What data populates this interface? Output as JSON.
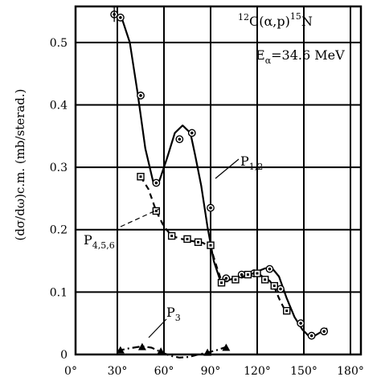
{
  "chart_data": {
    "type": "line",
    "ylabel": "(dσ/dω)c.m. (mb/sterad.)",
    "reaction": {
      "pre": "12",
      "main": "C(α,p)",
      "post": "15",
      "tail": "N"
    },
    "energy": {
      "main": "E",
      "sub": "α",
      "rest": "=34.6 MeV"
    },
    "xlim": [
      0,
      180
    ],
    "ylim": [
      0,
      0.56
    ],
    "x_ticks": [
      "0°",
      "30°",
      "60°",
      "90°",
      "120°",
      "150°",
      "180°"
    ],
    "x_tick_values": [
      0,
      30,
      60,
      90,
      120,
      150,
      180
    ],
    "y_ticks": [
      "0",
      "0.1",
      "0.2",
      "0.3",
      "0.4",
      "0.5"
    ],
    "y_tick_values": [
      0,
      0.1,
      0.2,
      0.3,
      0.4,
      0.5
    ],
    "grid": true,
    "series": [
      {
        "name": {
          "main": "P",
          "sub": "1,2"
        },
        "style": "solid",
        "marker": "circle",
        "x": [
          28,
          32,
          45,
          55,
          70,
          78,
          90,
          100,
          110,
          118,
          128,
          135,
          148,
          155,
          163
        ],
        "y": [
          0.545,
          0.54,
          0.415,
          0.275,
          0.345,
          0.355,
          0.235,
          0.122,
          0.128,
          0.13,
          0.137,
          0.105,
          0.05,
          0.03,
          0.037
        ],
        "curve_x": [
          28,
          33,
          38,
          43,
          48,
          53,
          57,
          62,
          67,
          72,
          77,
          80,
          84,
          88,
          92,
          96,
          100,
          105,
          110,
          115,
          120,
          125,
          129,
          134,
          139,
          144,
          149,
          153,
          157,
          161,
          165
        ],
        "curve_y": [
          0.548,
          0.538,
          0.5,
          0.42,
          0.33,
          0.277,
          0.278,
          0.315,
          0.355,
          0.367,
          0.355,
          0.32,
          0.27,
          0.205,
          0.15,
          0.12,
          0.118,
          0.122,
          0.126,
          0.13,
          0.133,
          0.138,
          0.14,
          0.125,
          0.09,
          0.06,
          0.04,
          0.03,
          0.03,
          0.036,
          0.042
        ]
      },
      {
        "name": {
          "main": "P",
          "sub": "4,5,6"
        },
        "style": "dashed",
        "marker": "square",
        "x": [
          45,
          55,
          65,
          75,
          82,
          90,
          97,
          106,
          114,
          120,
          125,
          131,
          139
        ],
        "y": [
          0.285,
          0.23,
          0.19,
          0.185,
          0.18,
          0.175,
          0.115,
          0.12,
          0.128,
          0.13,
          0.12,
          0.11,
          0.07
        ],
        "curve_x": [
          45,
          50,
          55,
          60,
          65,
          70,
          75,
          80,
          85,
          90,
          94,
          97,
          102,
          108,
          114,
          120,
          125,
          128,
          131,
          134,
          137,
          139
        ],
        "curve_y": [
          0.285,
          0.265,
          0.23,
          0.205,
          0.19,
          0.186,
          0.183,
          0.181,
          0.179,
          0.172,
          0.14,
          0.118,
          0.117,
          0.122,
          0.128,
          0.131,
          0.122,
          0.118,
          0.108,
          0.09,
          0.075,
          0.068
        ]
      },
      {
        "name": {
          "main": "P",
          "sub": "3"
        },
        "style": "dash-dot",
        "marker": "triangle",
        "x": [
          32,
          46,
          58,
          88,
          100
        ],
        "y": [
          0.007,
          0.012,
          0.005,
          0.003,
          0.011
        ],
        "curve_x": [
          30,
          38,
          46,
          52,
          58,
          64,
          70,
          76,
          82,
          88,
          94,
          100
        ],
        "curve_y": [
          0.006,
          0.01,
          0.013,
          0.011,
          0.004,
          -0.002,
          -0.005,
          -0.004,
          0.0,
          0.003,
          0.007,
          0.012
        ]
      }
    ]
  }
}
